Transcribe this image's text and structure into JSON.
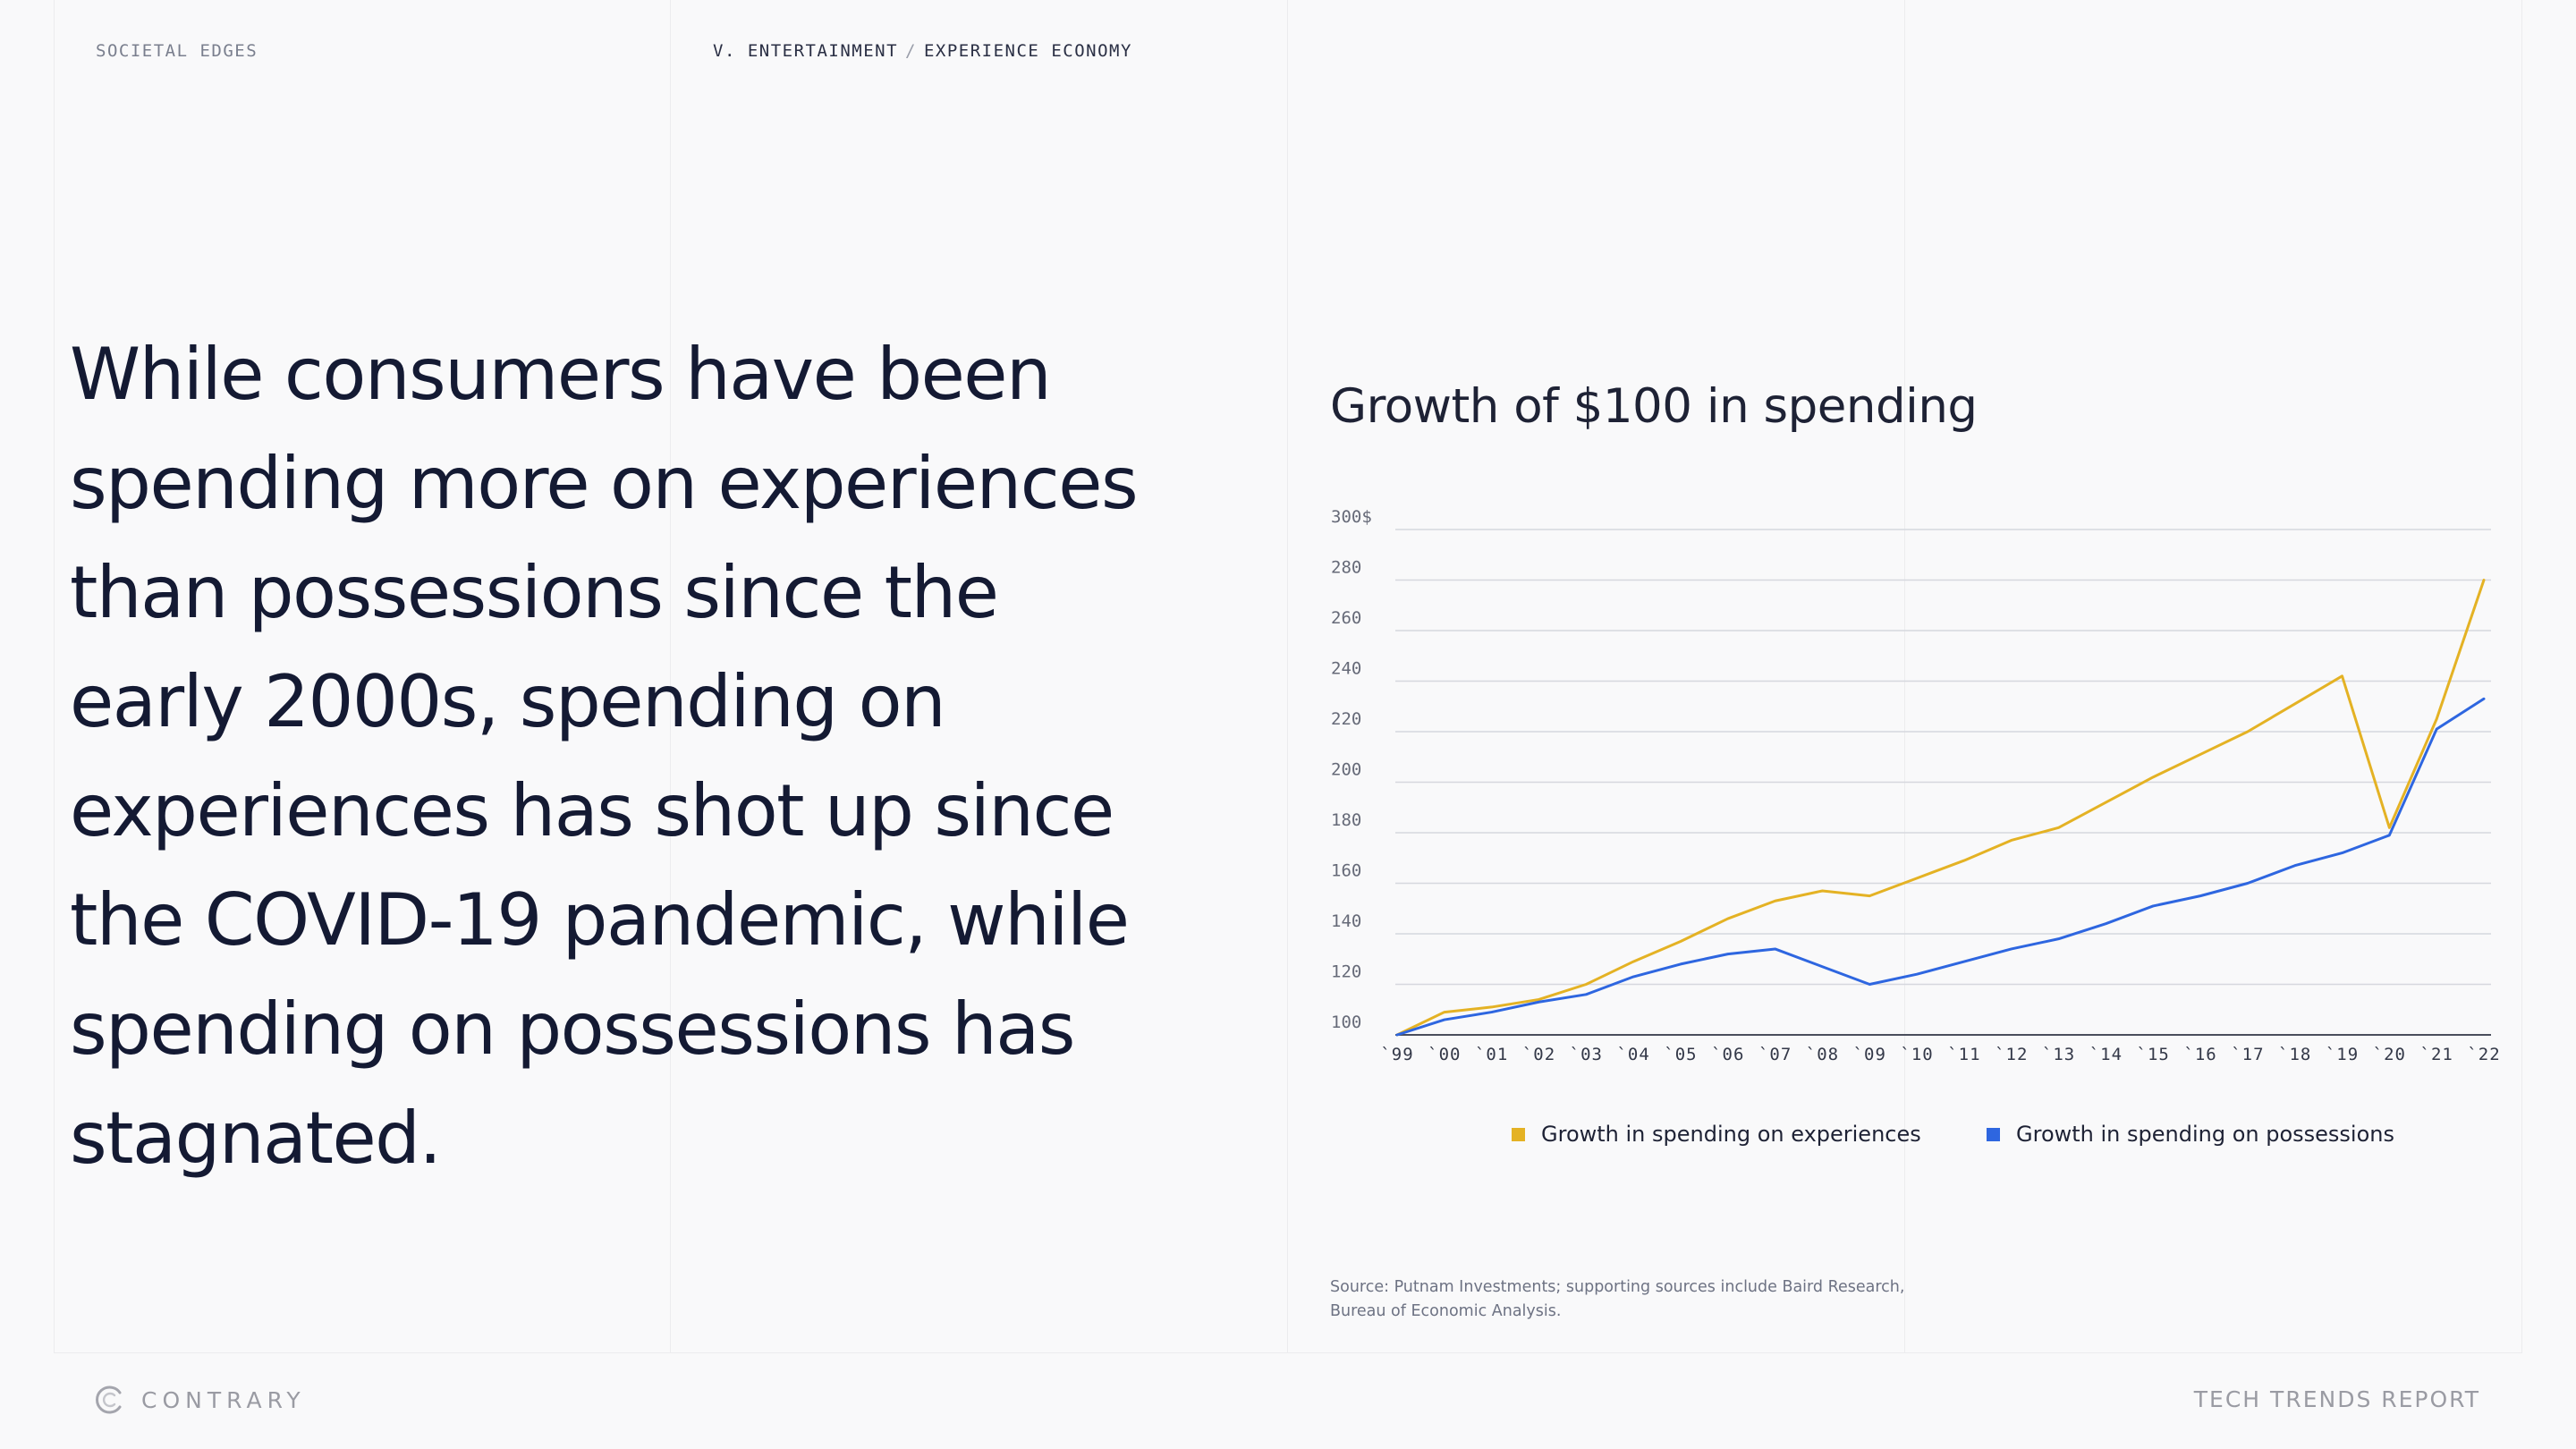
{
  "header": {
    "left_label": "SOCIETAL EDGES",
    "section": "V. ENTERTAINMENT",
    "subsection": "EXPERIENCE ECONOMY"
  },
  "headline": "While consumers have been spending more on experiences than possessions since the early 2000s, spending on experiences has shot up since the COVID-19 pandemic, while spending on possessions has stagnated.",
  "chart_data": {
    "type": "line",
    "title": "Growth of $100 in spending",
    "x": [
      "`99",
      "`00",
      "`01",
      "`02",
      "`03",
      "`04",
      "`05",
      "`06",
      "`07",
      "`08",
      "`09",
      "`10",
      "`11",
      "`12",
      "`13",
      "`14",
      "`15",
      "`16",
      "`17",
      "`18",
      "`19",
      "`20",
      "`21",
      "`22"
    ],
    "ylim": [
      100,
      300
    ],
    "yticks": [
      100,
      120,
      140,
      160,
      180,
      200,
      220,
      240,
      260,
      280,
      300
    ],
    "ytick_labels": [
      "100",
      "120",
      "140",
      "160",
      "180",
      "200",
      "220",
      "240",
      "260",
      "280",
      "300$"
    ],
    "grid": true,
    "legend_position": "bottom",
    "series": [
      {
        "name": "Growth in spending on experiences",
        "color": "#e4b224",
        "values": [
          100,
          109,
          111,
          114,
          120,
          129,
          137,
          146,
          153,
          157,
          155,
          162,
          169,
          177,
          182,
          192,
          202,
          211,
          220,
          231,
          242,
          182,
          225,
          280
        ]
      },
      {
        "name": "Growth in spending on possessions",
        "color": "#2e66e0",
        "values": [
          100,
          106,
          109,
          113,
          116,
          123,
          128,
          132,
          134,
          127,
          120,
          124,
          129,
          134,
          138,
          144,
          151,
          155,
          160,
          167,
          172,
          179,
          221,
          233
        ]
      }
    ]
  },
  "source": "Source: Putnam Investments; supporting sources include Baird Research, Bureau of Economic Analysis.",
  "footer": {
    "brand": "CONTRARY",
    "report": "TECH TRENDS REPORT"
  }
}
